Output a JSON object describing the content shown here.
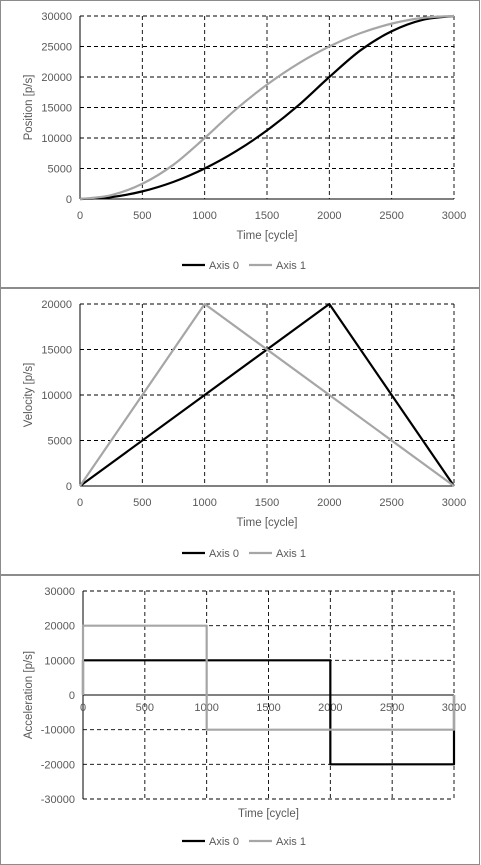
{
  "chart_data": [
    {
      "type": "line",
      "title": "",
      "xlabel": "Time [cycle]",
      "ylabel": "Position [p/s]",
      "xlim": [
        0,
        3000
      ],
      "ylim": [
        0,
        30000
      ],
      "xticks": [
        0,
        500,
        1000,
        1500,
        2000,
        2500,
        3000
      ],
      "yticks": [
        0,
        5000,
        10000,
        15000,
        20000,
        25000,
        30000
      ],
      "x_tick_labels_at": "bottom",
      "grid": "dashed",
      "legend": "bottom",
      "series": [
        {
          "name": "Axis 0",
          "color": "#000000",
          "x": [
            0,
            250,
            500,
            750,
            1000,
            1250,
            1500,
            1750,
            2000,
            2250,
            2500,
            2750,
            3000
          ],
          "y": [
            0,
            312,
            1250,
            2812,
            5000,
            7812,
            11250,
            15312,
            20000,
            24375,
            27500,
            29375,
            30000
          ]
        },
        {
          "name": "Axis 1",
          "color": "#a6a6a6",
          "x": [
            0,
            250,
            500,
            750,
            1000,
            1250,
            1500,
            1750,
            2000,
            2250,
            2500,
            2750,
            3000
          ],
          "y": [
            0,
            625,
            2500,
            5625,
            10000,
            14688,
            18750,
            22188,
            25000,
            27188,
            28750,
            29688,
            30000
          ]
        }
      ]
    },
    {
      "type": "line",
      "title": "",
      "xlabel": "Time [cycle]",
      "ylabel": "Velocity [p/s]",
      "xlim": [
        0,
        3000
      ],
      "ylim": [
        0,
        20000
      ],
      "xticks": [
        0,
        500,
        1000,
        1500,
        2000,
        2500,
        3000
      ],
      "yticks": [
        0,
        5000,
        10000,
        15000,
        20000
      ],
      "x_tick_labels_at": "bottom",
      "grid": "dashed",
      "legend": "bottom",
      "series": [
        {
          "name": "Axis 0",
          "color": "#000000",
          "x": [
            0,
            2000,
            3000
          ],
          "y": [
            0,
            20000,
            0
          ]
        },
        {
          "name": "Axis 1",
          "color": "#a6a6a6",
          "x": [
            0,
            1000,
            3000
          ],
          "y": [
            0,
            20000,
            0
          ]
        }
      ]
    },
    {
      "type": "line",
      "title": "",
      "xlabel": "Time [cycle]",
      "ylabel": "Acceleration [p/s]",
      "xlim": [
        0,
        3000
      ],
      "ylim": [
        -30000,
        30000
      ],
      "xticks": [
        0,
        500,
        1000,
        1500,
        2000,
        2500,
        3000
      ],
      "yticks": [
        -30000,
        -20000,
        -10000,
        0,
        10000,
        20000,
        30000
      ],
      "x_tick_labels_at": "zero",
      "grid": "dashed",
      "legend": "bottom",
      "series": [
        {
          "name": "Axis 0",
          "color": "#000000",
          "x": [
            0,
            0,
            2000,
            2000,
            3000,
            3000
          ],
          "y": [
            0,
            10000,
            10000,
            -20000,
            -20000,
            0
          ]
        },
        {
          "name": "Axis 1",
          "color": "#a6a6a6",
          "x": [
            0,
            0,
            1000,
            1000,
            3000,
            3000
          ],
          "y": [
            0,
            20000,
            20000,
            -10000,
            -10000,
            0
          ]
        }
      ]
    }
  ]
}
